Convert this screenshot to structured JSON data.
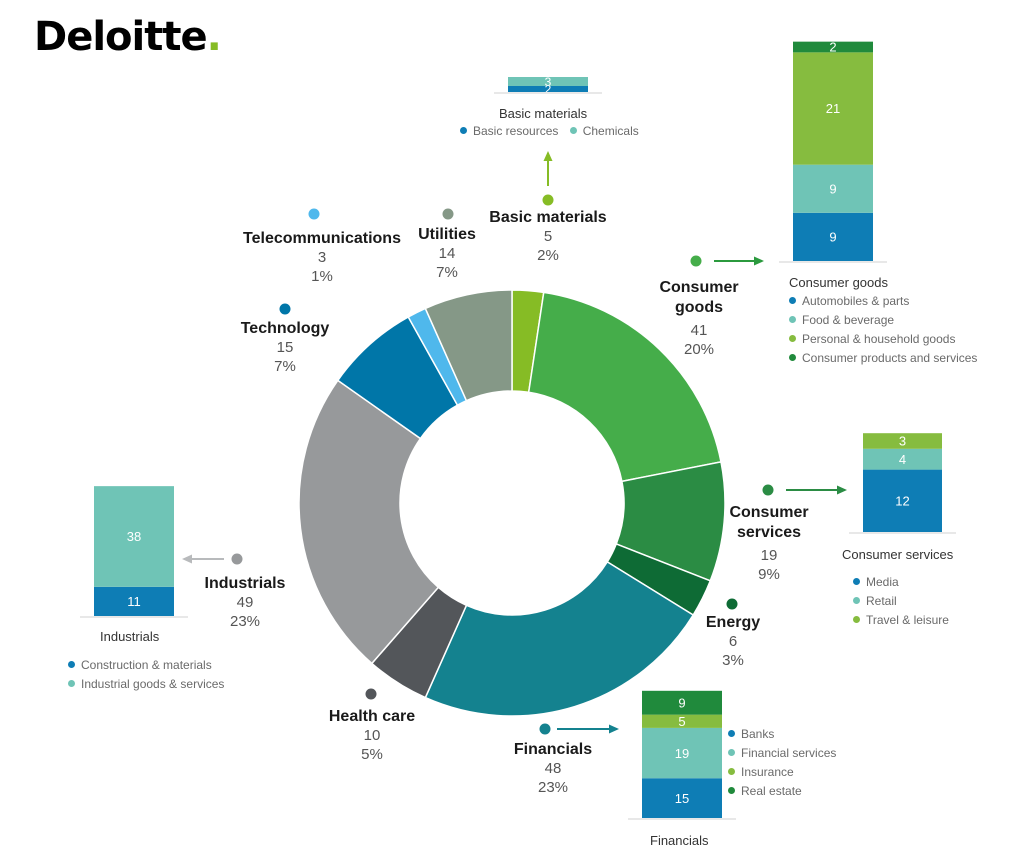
{
  "brand": {
    "name": "Deloitte",
    "dot": ".",
    "accent": "#86bc25"
  },
  "chart_data": {
    "type": "pie",
    "donut": true,
    "sectors": [
      {
        "name": "Basic materials",
        "value": 5,
        "percent": "2%",
        "color": "#86bc25"
      },
      {
        "name": "Consumer goods",
        "value": 41,
        "percent": "20%",
        "color": "#45ad4a"
      },
      {
        "name": "Consumer services",
        "value": 19,
        "percent": "9%",
        "color": "#2b8c44"
      },
      {
        "name": "Energy",
        "value": 6,
        "percent": "3%",
        "color": "#0e6b35"
      },
      {
        "name": "Financials",
        "value": 48,
        "percent": "23%",
        "color": "#14828f"
      },
      {
        "name": "Health care",
        "value": 10,
        "percent": "5%",
        "color": "#53565a"
      },
      {
        "name": "Industrials",
        "value": 49,
        "percent": "23%",
        "color": "#97999b"
      },
      {
        "name": "Technology",
        "value": 15,
        "percent": "7%",
        "color": "#0076a8"
      },
      {
        "name": "Telecommunications",
        "value": 3,
        "percent": "1%",
        "color": "#4fb8ec"
      },
      {
        "name": "Utilities",
        "value": 14,
        "percent": "7%",
        "color": "#859887"
      }
    ],
    "breakdowns": [
      {
        "title": "Basic materials",
        "segments": [
          {
            "name": "Basic resources",
            "value": 2,
            "color": "#0e7db5"
          },
          {
            "name": "Chemicals",
            "value": 3,
            "color": "#6fc4b6"
          }
        ]
      },
      {
        "title": "Consumer goods",
        "segments": [
          {
            "name": "Automobiles & parts",
            "value": 9,
            "color": "#0e7db5"
          },
          {
            "name": "Food & beverage",
            "value": 9,
            "color": "#6fc4b6"
          },
          {
            "name": "Personal & household goods",
            "value": 21,
            "color": "#86bc3f"
          },
          {
            "name": "Consumer products and services",
            "value": 2,
            "color": "#208a3c"
          }
        ]
      },
      {
        "title": "Consumer services",
        "segments": [
          {
            "name": "Media",
            "value": 12,
            "color": "#0e7db5"
          },
          {
            "name": "Retail",
            "value": 4,
            "color": "#6fc4b6"
          },
          {
            "name": "Travel & leisure",
            "value": 3,
            "color": "#86bc3f"
          }
        ]
      },
      {
        "title": "Industrials",
        "segments": [
          {
            "name": "Construction & materials",
            "value": 11,
            "color": "#0e7db5"
          },
          {
            "name": "Industrial goods & services",
            "value": 38,
            "color": "#6fc4b6"
          }
        ]
      },
      {
        "title": "Financials",
        "segments": [
          {
            "name": "Banks",
            "value": 15,
            "color": "#0e7db5"
          },
          {
            "name": "Financial services",
            "value": 19,
            "color": "#6fc4b6"
          },
          {
            "name": "Insurance",
            "value": 5,
            "color": "#86bc3f"
          },
          {
            "name": "Real estate",
            "value": 9,
            "color": "#208a3c"
          }
        ]
      }
    ]
  }
}
